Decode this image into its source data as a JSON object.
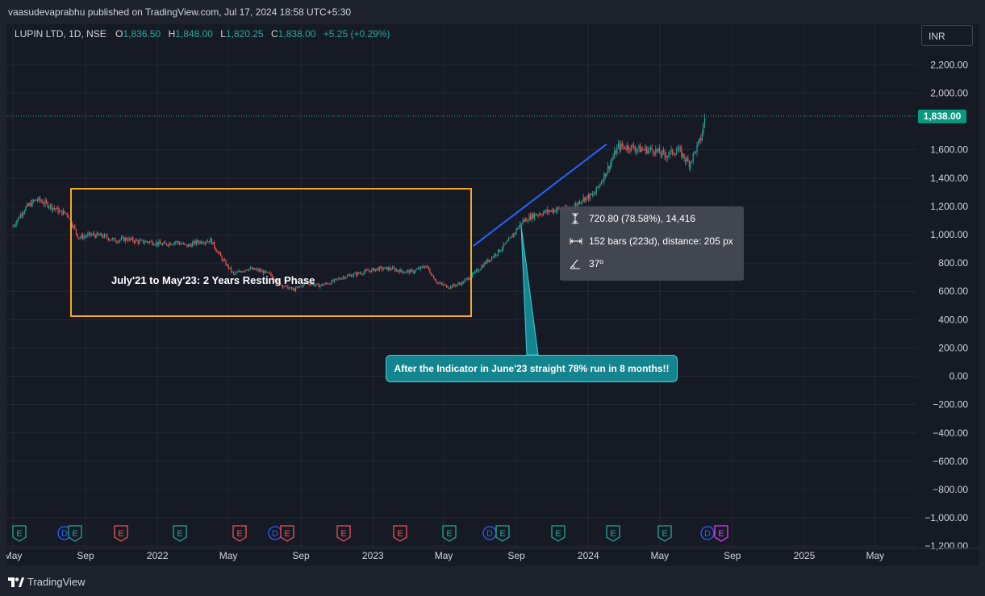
{
  "header": {
    "published": "vaasudevaprabhu published on TradingView.com, Jul 17, 2024 18:58 UTC+5:30"
  },
  "symbol": {
    "name": "LUPIN LTD, 1D, NSE",
    "open_label": "O",
    "open": "1,836.50",
    "high_label": "H",
    "high": "1,848.00",
    "low_label": "L",
    "low": "1,820.25",
    "close_label": "C",
    "close": "1,838.00",
    "change": "+5.25 (+0.29%)"
  },
  "currency_button": "INR",
  "last_price_label": "1,838.00",
  "colors": {
    "up": "#26a69a",
    "down": "#ef5350",
    "rectangle": "#f5a623",
    "trend_line": "#2962ff",
    "price_tag": "#089981",
    "callout": "#14858f"
  },
  "annotations": {
    "resting_phase": "July'21 to May'23: 2 Years Resting Phase",
    "callout": "After the Indicator in June'23 straight 78% run in 8 months!!",
    "measure": {
      "price_range": "720.80 (78.58%), 14,416",
      "bars_range": "152 bars (223d), distance: 205 px",
      "angle": "37º"
    }
  },
  "footer": {
    "brand": "TradingView"
  },
  "chart_data": {
    "type": "line",
    "style": "candlestick",
    "title": "LUPIN LTD, 1D, NSE",
    "ylim": [
      -1250,
      2350
    ],
    "y_ticks": [
      2200,
      2000,
      1600,
      1400,
      1200,
      1000,
      800,
      600,
      400,
      200,
      0,
      -200,
      -400,
      -600,
      -800,
      -1000,
      -1200
    ],
    "y_tick_labels": [
      "2,200.00",
      "2,000.00",
      "1,600.00",
      "1,400.00",
      "1,200.00",
      "1,000.00",
      "800.00",
      "600.00",
      "400.00",
      "200.00",
      "0.00",
      "−200.00",
      "−400.00",
      "−600.00",
      "−800.00",
      "−1,000.00",
      "−1,200.00"
    ],
    "x_tick_labels": [
      "May",
      "Sep",
      "2022",
      "May",
      "Sep",
      "2023",
      "May",
      "Sep",
      "2024",
      "May",
      "Sep",
      "2025",
      "May"
    ],
    "x_tick_dates": [
      "2021-05",
      "2021-09",
      "2022-01",
      "2022-05",
      "2022-09",
      "2023-01",
      "2023-05",
      "2023-09",
      "2024-01",
      "2024-05",
      "2024-09",
      "2025-01",
      "2025-05"
    ],
    "grid": true,
    "series": [
      {
        "x": [
          "2021-05-01",
          "2021-05-20",
          "2021-06-10",
          "2021-07-01",
          "2021-07-20",
          "2021-08-01",
          "2021-08-20",
          "2021-09-10",
          "2021-10-01",
          "2021-10-20",
          "2021-11-10",
          "2021-12-01",
          "2021-12-20",
          "2022-01-10",
          "2022-02-01",
          "2022-02-20",
          "2022-03-10",
          "2022-04-01",
          "2022-04-20",
          "2022-05-10",
          "2022-06-01",
          "2022-06-20",
          "2022-07-10",
          "2022-08-01",
          "2022-08-20",
          "2022-09-10",
          "2022-10-01",
          "2022-10-20",
          "2022-11-10",
          "2022-12-01",
          "2022-12-20",
          "2023-01-10",
          "2023-02-01",
          "2023-02-20",
          "2023-03-10",
          "2023-04-01",
          "2023-04-20",
          "2023-05-10",
          "2023-06-01",
          "2023-06-20",
          "2023-07-10",
          "2023-08-01",
          "2023-08-20",
          "2023-09-10",
          "2023-10-01",
          "2023-10-20",
          "2023-11-10",
          "2023-12-01",
          "2023-12-20",
          "2024-01-10",
          "2024-02-01",
          "2024-02-20",
          "2024-03-10",
          "2024-04-01",
          "2024-04-20",
          "2024-05-10",
          "2024-06-01",
          "2024-06-20",
          "2024-07-10",
          "2024-07-17"
        ],
        "y": [
          1060,
          1180,
          1250,
          1210,
          1160,
          1150,
          980,
          1000,
          990,
          960,
          970,
          950,
          950,
          930,
          950,
          920,
          950,
          960,
          830,
          720,
          760,
          750,
          720,
          640,
          610,
          660,
          640,
          660,
          700,
          720,
          740,
          760,
          760,
          740,
          740,
          780,
          660,
          630,
          660,
          720,
          800,
          880,
          960,
          1090,
          1140,
          1160,
          1180,
          1170,
          1250,
          1280,
          1450,
          1620,
          1620,
          1600,
          1600,
          1560,
          1600,
          1500,
          1680,
          1838
        ]
      }
    ]
  }
}
